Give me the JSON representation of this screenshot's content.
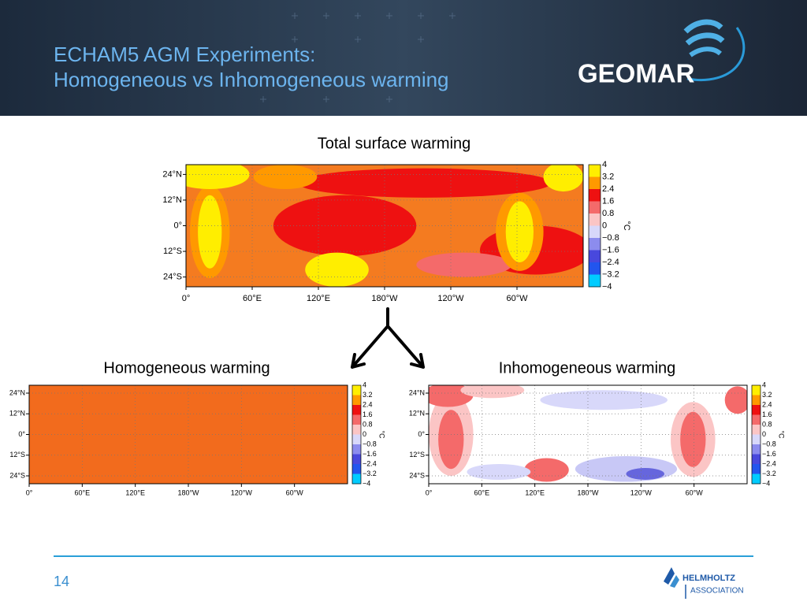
{
  "header": {
    "title_lines": [
      "ECHAM5 AGM Experiments:",
      "Homogeneous vs Inhomogeneous warming"
    ],
    "logo": "GEOMAR"
  },
  "maps": [
    {
      "title": "Total surface warming",
      "lat_labels": [
        "24°N",
        "12°N",
        "0°",
        "12°S",
        "24°S"
      ],
      "lon_labels": [
        "0°",
        "60°E",
        "120°E",
        "180°W",
        "120°W",
        "60°W"
      ],
      "colorbar_labels": [
        "4",
        "3.2",
        "2.4",
        "1.6",
        "0.8",
        "0",
        "−0.8",
        "−1.6",
        "−2.4",
        "−3.2",
        "−4"
      ],
      "unit": "°C"
    },
    {
      "title": "Homogeneous warming",
      "lat_labels": [
        "24°N",
        "12°N",
        "0°",
        "12°S",
        "24°S"
      ],
      "lon_labels": [
        "0°",
        "60°E",
        "120°E",
        "180°W",
        "120°W",
        "60°W"
      ],
      "colorbar_labels": [
        "4",
        "3.2",
        "2.4",
        "1.6",
        "0.8",
        "0",
        "−0.8",
        "−1.6",
        "−2.4",
        "−3.2",
        "−4"
      ],
      "unit": "°C"
    },
    {
      "title": "Inhomogeneous warming",
      "lat_labels": [
        "24°N",
        "12°N",
        "0°",
        "12°S",
        "24°S"
      ],
      "lon_labels": [
        "0°",
        "60°E",
        "120°E",
        "180°W",
        "120°W",
        "60°W"
      ],
      "colorbar_labels": [
        "4",
        "3.2",
        "2.4",
        "1.6",
        "0.8",
        "0",
        "−0.8",
        "−1.6",
        "−2.4",
        "−3.2",
        "−4"
      ],
      "unit": "°C"
    }
  ],
  "footer": {
    "page_number": "14",
    "logo_lines": [
      "HELMHOLTZ",
      "ASSOCIATION"
    ]
  }
}
